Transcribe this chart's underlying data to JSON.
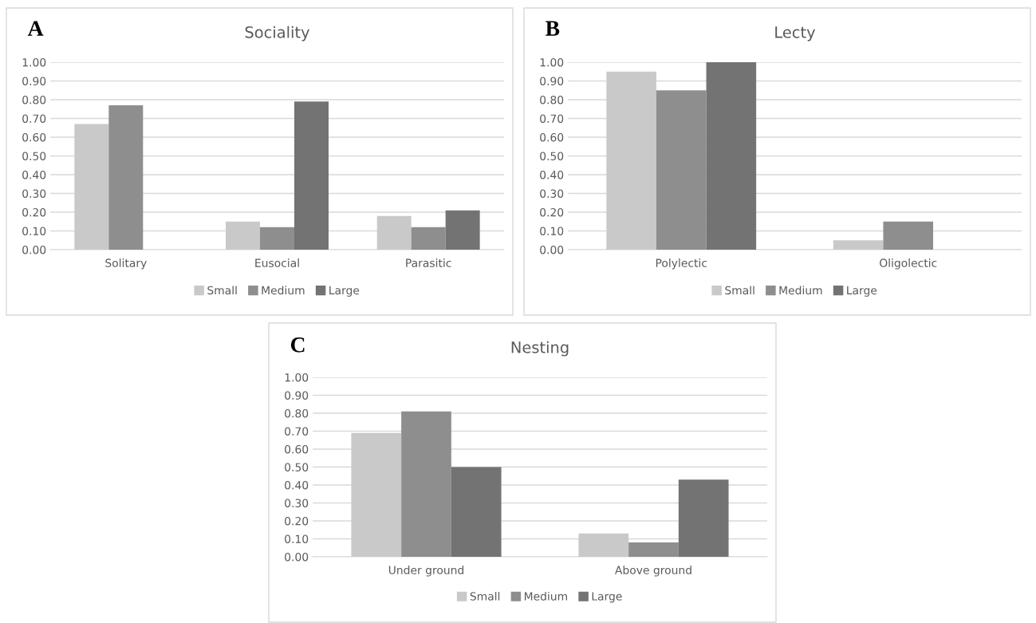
{
  "chart_data": [
    {
      "type": "bar",
      "title": "Sociality",
      "annotations": [
        "A"
      ],
      "categories": [
        "Solitary",
        "Eusocial",
        "Parasitic"
      ],
      "series": [
        {
          "name": "Small",
          "color": "#c9c9c9",
          "values": [
            0.67,
            0.15,
            0.18
          ]
        },
        {
          "name": "Medium",
          "color": "#8e8e8e",
          "values": [
            0.77,
            0.12,
            0.12
          ]
        },
        {
          "name": "Large",
          "color": "#737373",
          "values": [
            0,
            0.79,
            0.21
          ]
        }
      ],
      "ylim": [
        0,
        1
      ],
      "yticks": [
        {
          "value": 0,
          "label": "0.00"
        },
        {
          "value": 0.1,
          "label": "0.10"
        },
        {
          "value": 0.2,
          "label": "0.20"
        },
        {
          "value": 0.3,
          "label": "0.30"
        },
        {
          "value": 0.4,
          "label": "0.40"
        },
        {
          "value": 0.5,
          "label": "0.50"
        },
        {
          "value": 0.6,
          "label": "0.60"
        },
        {
          "value": 0.7,
          "label": "0.70"
        },
        {
          "value": 0.8,
          "label": "0.80"
        },
        {
          "value": 0.9,
          "label": "0.90"
        },
        {
          "value": 1,
          "label": "1.00"
        }
      ],
      "grid": "y",
      "legend": "bottom"
    },
    {
      "type": "bar",
      "title": "Lecty",
      "annotations": [
        "B"
      ],
      "categories": [
        "Polylectic",
        "Oligolectic"
      ],
      "series": [
        {
          "name": "Small",
          "color": "#c9c9c9",
          "values": [
            0.95,
            0.05
          ]
        },
        {
          "name": "Medium",
          "color": "#8e8e8e",
          "values": [
            0.85,
            0.15
          ]
        },
        {
          "name": "Large",
          "color": "#737373",
          "values": [
            1.0,
            0
          ]
        }
      ],
      "ylim": [
        0,
        1
      ],
      "yticks": [
        {
          "value": 0,
          "label": "0.00"
        },
        {
          "value": 0.1,
          "label": "0.10"
        },
        {
          "value": 0.2,
          "label": "0.20"
        },
        {
          "value": 0.3,
          "label": "0.30"
        },
        {
          "value": 0.4,
          "label": "0.40"
        },
        {
          "value": 0.5,
          "label": "0.50"
        },
        {
          "value": 0.6,
          "label": "0.60"
        },
        {
          "value": 0.7,
          "label": "0.70"
        },
        {
          "value": 0.8,
          "label": "0.80"
        },
        {
          "value": 0.9,
          "label": "0.90"
        },
        {
          "value": 1,
          "label": "1.00"
        }
      ],
      "grid": "y",
      "legend": "bottom"
    },
    {
      "type": "bar",
      "title": "Nesting",
      "annotations": [
        "C"
      ],
      "categories": [
        "Under ground",
        "Above ground"
      ],
      "series": [
        {
          "name": "Small",
          "color": "#c9c9c9",
          "values": [
            0.69,
            0.13
          ]
        },
        {
          "name": "Medium",
          "color": "#8e8e8e",
          "values": [
            0.81,
            0.08
          ]
        },
        {
          "name": "Large",
          "color": "#737373",
          "values": [
            0.5,
            0.43
          ]
        }
      ],
      "ylim": [
        0,
        1
      ],
      "yticks": [
        {
          "value": 0,
          "label": "0.00"
        },
        {
          "value": 0.1,
          "label": "0.10"
        },
        {
          "value": 0.2,
          "label": "0.20"
        },
        {
          "value": 0.3,
          "label": "0.30"
        },
        {
          "value": 0.4,
          "label": "0.40"
        },
        {
          "value": 0.5,
          "label": "0.50"
        },
        {
          "value": 0.6,
          "label": "0.60"
        },
        {
          "value": 0.7,
          "label": "0.70"
        },
        {
          "value": 0.8,
          "label": "0.80"
        },
        {
          "value": 0.9,
          "label": "0.90"
        },
        {
          "value": 1,
          "label": "1.00"
        }
      ],
      "grid": "y",
      "legend": "bottom"
    }
  ]
}
